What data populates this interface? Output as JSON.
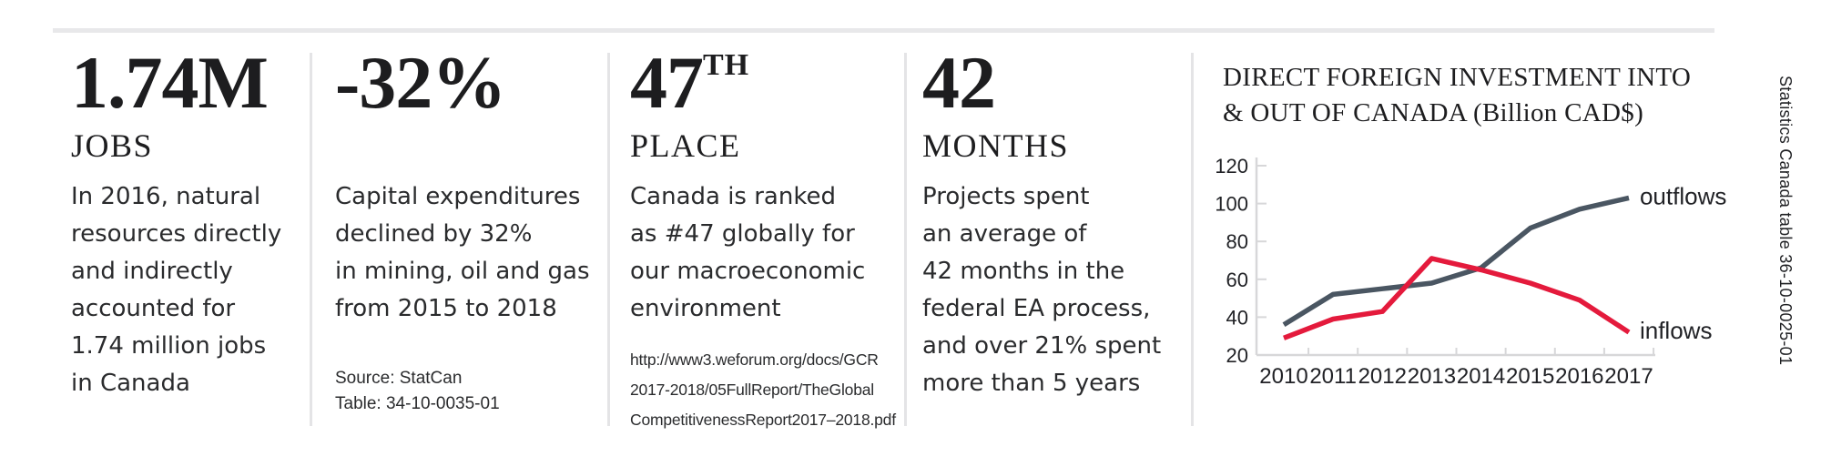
{
  "panels": [
    {
      "value": "1.74M",
      "label": "JOBS",
      "body_lines": [
        "In 2016, natural",
        "resources directly",
        "and indirectly",
        "accounted for",
        "1.74 million jobs",
        "in Canada"
      ]
    },
    {
      "value": "-32%",
      "body_lines": [
        "Capital expenditures",
        "declined by 32%",
        "in mining, oil and gas",
        "from 2015 to 2018"
      ],
      "footnote_lines": [
        "Source: StatCan",
        "Table: 34-10-0035-01"
      ]
    },
    {
      "value": "47",
      "value_suffix": "TH",
      "label": "PLACE",
      "body_lines": [
        "Canada is ranked",
        "as #47 globally for",
        "our macroeconomic",
        "environment"
      ],
      "footnote_lines": [
        "http://www3.weforum.org/docs/GCR",
        "2017-2018/05FullReport/TheGlobal",
        "CompetitivenessReport2017–2018.pdf"
      ]
    },
    {
      "value": "42",
      "label": "MONTHS",
      "body_lines": [
        "Projects spent",
        "an average of",
        "42 months in the",
        "federal EA process,",
        "and over 21% spent",
        "more than 5 years"
      ]
    }
  ],
  "chart_data": {
    "type": "line",
    "title": "DIRECT FOREIGN INVESTMENT INTO & OUT OF CANADA (Billion CAD$)",
    "title_lines": [
      "DIRECT FOREIGN INVESTMENT INTO",
      "& OUT OF CANADA (Billion CAD$)"
    ],
    "x": [
      "2010",
      "2011",
      "2012",
      "2013",
      "2014",
      "2015",
      "2016",
      "2017"
    ],
    "series": [
      {
        "name": "outflows",
        "color": "#4a5662",
        "values": [
          36,
          52,
          55,
          58,
          66,
          87,
          97,
          103
        ]
      },
      {
        "name": "inflows",
        "color": "#e41a3c",
        "values": [
          29,
          39,
          43,
          71,
          65,
          58,
          49,
          32
        ]
      }
    ],
    "ylim": [
      20,
      120
    ],
    "yticks": [
      20,
      40,
      60,
      80,
      100,
      120
    ],
    "grid": false,
    "legend": "line-end-labels"
  },
  "side_caption": "Statistics Canada table 36-10-0025-01",
  "colors": {
    "outflows": "#4a5662",
    "inflows": "#e41a3c",
    "top_rule": "#e8e8ea",
    "divider": "#e4e4e6",
    "heading_text": "#1d1d1f",
    "body_text": "#2a2b2d"
  }
}
